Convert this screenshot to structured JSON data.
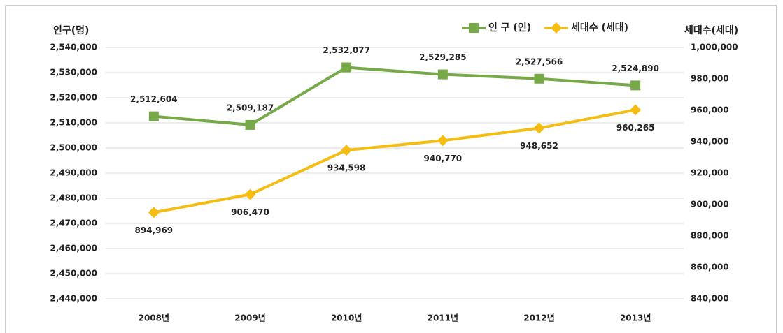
{
  "chart_data": {
    "type": "line",
    "ylabel": "인구(명)",
    "y2label": "세대수(세대)",
    "categories": [
      "2008년",
      "2009년",
      "2010년",
      "2011년",
      "2012년",
      "2013년"
    ],
    "series": [
      {
        "name": "인 구 (인)",
        "color": "#77a948",
        "marker": "square",
        "values": [
          2512604,
          2509187,
          2532077,
          2529285,
          2527566,
          2524890
        ],
        "value_labels": [
          "2,512,604",
          "2,509,187",
          "2,532,077",
          "2,529,285",
          "2,527,566",
          "2,524,890"
        ]
      },
      {
        "name": "세대수 (세대)",
        "color": "#f5bd12",
        "marker": "diamond",
        "axis": "y2",
        "values": [
          894969,
          906470,
          934598,
          940770,
          948652,
          960265
        ],
        "value_labels": [
          "894,969",
          "906,470",
          "934,598",
          "940,770",
          "948,652",
          "960,265"
        ]
      }
    ],
    "ylim": [
      2440000,
      2540000
    ],
    "yticks": [
      {
        "value": 2440000,
        "label": "2,440,000"
      },
      {
        "value": 2450000,
        "label": "2,450,000"
      },
      {
        "value": 2460000,
        "label": "2,460,000"
      },
      {
        "value": 2470000,
        "label": "2,470,000"
      },
      {
        "value": 2480000,
        "label": "2,480,000"
      },
      {
        "value": 2490000,
        "label": "2,490,000"
      },
      {
        "value": 2500000,
        "label": "2,500,000"
      },
      {
        "value": 2510000,
        "label": "2,510,000"
      },
      {
        "value": 2520000,
        "label": "2,520,000"
      },
      {
        "value": 2530000,
        "label": "2,530,000"
      },
      {
        "value": 2540000,
        "label": "2,540,000"
      }
    ],
    "y2lim": [
      840000,
      1000000
    ],
    "y2ticks": [
      {
        "value": 840000,
        "label": "840,000"
      },
      {
        "value": 860000,
        "label": "860,000"
      },
      {
        "value": 880000,
        "label": "880,000"
      },
      {
        "value": 900000,
        "label": "900,000"
      },
      {
        "value": 920000,
        "label": "920,000"
      },
      {
        "value": 940000,
        "label": "940,000"
      },
      {
        "value": 960000,
        "label": "960,000"
      },
      {
        "value": 980000,
        "label": "980,000"
      },
      {
        "value": 1000000,
        "label": "1,000,000"
      }
    ],
    "grid": true,
    "legend": "top-right"
  }
}
